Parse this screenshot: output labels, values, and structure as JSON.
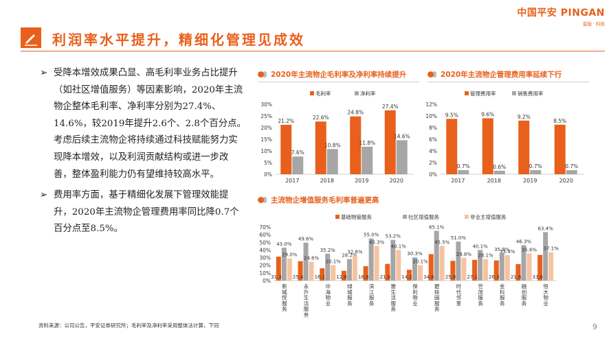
{
  "logo": {
    "main": "中国平安 PINGAN",
    "sub": "金融 · 科技"
  },
  "page_title": "利润率水平提升，精细化管理见成效",
  "bullets": [
    {
      "arrow": "➢",
      "text": "受降本增效成果凸显、高毛利率业务占比提升（如社区增值服务）等因素影响，2020年主流物企整体毛利率、净利率分别为27.4%、14.6%，较2019年提升2.6个、2.8个百分点。考虑后续主流物企将持续通过科技赋能努力实现降本增效，以及利润贡献结构或进一步改善，整体盈利能力仍有望维持较高水平。"
    },
    {
      "arrow": "➢",
      "text": "费用率方面，基于精细化发展下管理效能提升，2020年主流物企管理费用率同比降0.7个百分点至8.5%。"
    }
  ],
  "footnote": "资料来源：公司公告，平安证券研究所；毛利率及净利率采用整体法计算，下同",
  "page_number": "9",
  "colors": {
    "accent": "#e8601c",
    "gray": "#a6a6a6",
    "peach": "#f6c3a0",
    "text": "#222222"
  },
  "chart_data": [
    {
      "type": "bar",
      "title": "2020年主流物企毛利率及净利率持续提升",
      "categories": [
        "2017",
        "2018",
        "2019",
        "2020"
      ],
      "series": [
        {
          "name": "毛利率",
          "values": [
            21.2,
            22.6,
            24.8,
            27.4
          ],
          "labels": [
            "21.2%",
            "22.6%",
            "24.8%",
            "27.4%"
          ]
        },
        {
          "name": "净利率",
          "values": [
            7.6,
            10.8,
            11.8,
            14.6
          ],
          "labels": [
            "7.6%",
            "10.8%",
            "11.8%",
            "14.6%"
          ]
        }
      ],
      "ylim": [
        0,
        30
      ],
      "yticks": [
        "0%",
        "5%",
        "10%",
        "15%",
        "20%",
        "25%",
        "30%"
      ],
      "legend_position": "top",
      "grid": false
    },
    {
      "type": "bar",
      "title": "2020年主流物企管理费用率延续下行",
      "categories": [
        "2017",
        "2018",
        "2019",
        "2020"
      ],
      "series": [
        {
          "name": "管理费用率",
          "values": [
            9.5,
            9.6,
            9.2,
            8.5
          ],
          "labels": [
            "9.5%",
            "9.6%",
            "9.2%",
            "8.5%"
          ]
        },
        {
          "name": "销售费用率",
          "values": [
            0.7,
            0.6,
            0.7,
            0.7
          ],
          "labels": [
            "0.7%",
            "0.6%",
            "0.7%",
            "0.7%"
          ]
        }
      ],
      "ylim": [
        0,
        12
      ],
      "yticks": [
        "0%",
        "2%",
        "4%",
        "6%",
        "8%",
        "10%",
        "12%"
      ],
      "legend_position": "top",
      "grid": false
    },
    {
      "type": "bar",
      "title": "主流物企增值服务毛利率普遍更高",
      "categories": [
        "新城悦服务",
        "永升生活服务",
        "中海物业",
        "绿城服务",
        "滨江服务",
        "雅生活服务",
        "保利物业",
        "碧桂园服务",
        "时代邻里",
        "世茂服务",
        "金科服务",
        "融创服务",
        "恒大物业"
      ],
      "series": [
        {
          "name": "基础物管服务",
          "values": [
            31.3,
            25.4,
            16.1,
            12.8,
            18.8,
            21.8,
            14.2,
            34.6,
            25.8,
            27.1,
            26.3,
            21.6,
            33.6
          ],
          "labels": [
            "31.3%",
            "25.4%",
            "16.1%",
            "12.8%",
            "18.8%",
            "21.8%",
            "14.2%",
            "34.6%",
            "25.8%",
            "27.1%",
            "26.3%",
            "21.6%",
            "33.6%"
          ]
        },
        {
          "name": "社区增值服务",
          "values": [
            43.0,
            49.6,
            35.2,
            28.2,
            55.0,
            53.2,
            30.3,
            65.1,
            51.0,
            40.1,
            35.9,
            46.3,
            63.4
          ],
          "labels": [
            "43.0%",
            "49.6%",
            "35.2%",
            "28.2%",
            "55.0%",
            "53.2%",
            "30.3%",
            "65.1%",
            "51.0%",
            "40.1%",
            "35.9%",
            "46.3%",
            "63.4%"
          ]
        },
        {
          "name": "非业主增值服务",
          "values": [
            29.0,
            24.6,
            20.1,
            32.6,
            45.3,
            40.1,
            20.1,
            45.5,
            29.8,
            28.1,
            33.4,
            35.6,
            37.1
          ],
          "labels": [
            "29.0%",
            "24.6%",
            "20.1%",
            "32.6%",
            "45.3%",
            "40.1%",
            "20.1%",
            "45.5%",
            "29.8%",
            "28.1%",
            "33.4%",
            "35.6%",
            "37.1%"
          ]
        }
      ],
      "ylim": [
        0,
        70
      ],
      "yticks": [
        "0%",
        "10%",
        "20%",
        "30%",
        "40%",
        "50%",
        "60%",
        "70%"
      ],
      "legend_position": "top",
      "grid": false
    }
  ]
}
